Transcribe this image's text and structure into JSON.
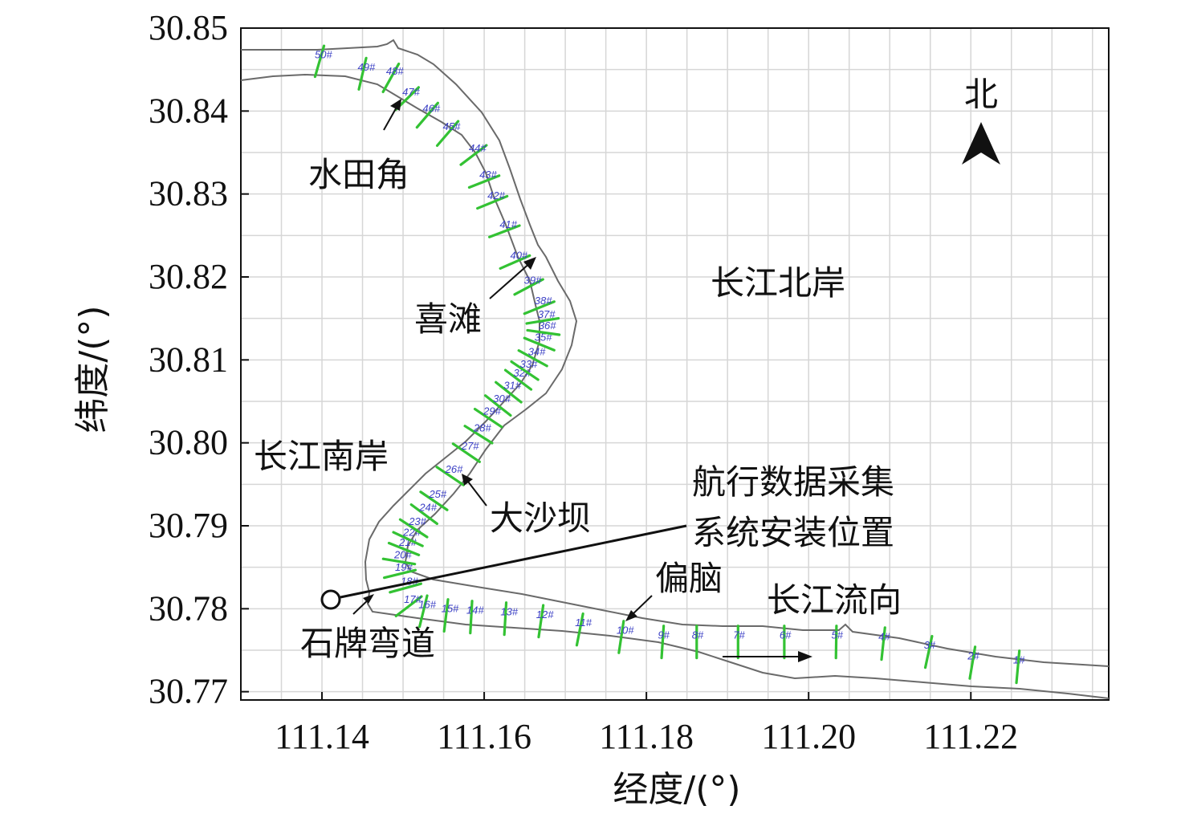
{
  "axes": {
    "xlabel": "经度/(°)",
    "ylabel": "纬度/(°)",
    "xlim": [
      111.13,
      111.237
    ],
    "ylim": [
      30.769,
      30.85
    ],
    "xticks": [
      "111.14",
      "111.16",
      "111.18",
      "111.20",
      "111.22"
    ],
    "yticks": [
      "30.85",
      "30.84",
      "30.83",
      "30.82",
      "30.81",
      "30.80",
      "30.79",
      "30.78",
      "30.77"
    ],
    "grid": true
  },
  "north": {
    "label": "北",
    "icon": "north-arrow-icon"
  },
  "places": {
    "shuitianjiao": "水田角",
    "xitan": "喜滩",
    "north_bank": "长江北岸",
    "south_bank": "长江南岸",
    "dashaba": "大沙坝",
    "install_line1": "航行数据采集",
    "install_line2": "系统安装位置",
    "piannao": "偏脑",
    "flow": "长江流向",
    "shipai": "石牌弯道"
  },
  "colors": {
    "bank": "#6a6a6a",
    "section": "#33c233",
    "section_label": "#3a3fc4",
    "grid": "#d6d6d6"
  },
  "sections": [
    {
      "label": "1#",
      "x": 111.2258,
      "y": 30.773
    },
    {
      "label": "2#",
      "x": 111.2202,
      "y": 30.7735
    },
    {
      "label": "3#",
      "x": 111.2148,
      "y": 30.7748
    },
    {
      "label": "4#",
      "x": 111.2092,
      "y": 30.7758
    },
    {
      "label": "5#",
      "x": 111.2034,
      "y": 30.776
    },
    {
      "label": "6#",
      "x": 111.197,
      "y": 30.776
    },
    {
      "label": "7#",
      "x": 111.1913,
      "y": 30.776
    },
    {
      "label": "8#",
      "x": 111.1862,
      "y": 30.776
    },
    {
      "label": "9#",
      "x": 111.182,
      "y": 30.776
    },
    {
      "label": "10#",
      "x": 111.1769,
      "y": 30.7766
    },
    {
      "label": "11#",
      "x": 111.1718,
      "y": 30.7775
    },
    {
      "label": "12#",
      "x": 111.167,
      "y": 30.7785
    },
    {
      "label": "13#",
      "x": 111.1626,
      "y": 30.7788
    },
    {
      "label": "14#",
      "x": 111.1584,
      "y": 30.779
    },
    {
      "label": "15#",
      "x": 111.1553,
      "y": 30.7792
    },
    {
      "label": "16#",
      "x": 111.1525,
      "y": 30.7797
    },
    {
      "label": "17#",
      "x": 111.1507,
      "y": 30.7803
    },
    {
      "label": "18#",
      "x": 111.1503,
      "y": 30.7825
    },
    {
      "label": "19#",
      "x": 111.1496,
      "y": 30.7842
    },
    {
      "label": "20#",
      "x": 111.1495,
      "y": 30.7857
    },
    {
      "label": "21#",
      "x": 111.1501,
      "y": 30.7872
    },
    {
      "label": "22#",
      "x": 111.1506,
      "y": 30.7884
    },
    {
      "label": "23#",
      "x": 111.1513,
      "y": 30.7897
    },
    {
      "label": "24#",
      "x": 111.1526,
      "y": 30.7914
    },
    {
      "label": "25#",
      "x": 111.1538,
      "y": 30.793
    },
    {
      "label": "26#",
      "x": 111.1558,
      "y": 30.796
    },
    {
      "label": "27#",
      "x": 111.1578,
      "y": 30.7988
    },
    {
      "label": "28#",
      "x": 111.1593,
      "y": 30.801
    },
    {
      "label": "29#",
      "x": 111.1605,
      "y": 30.803
    },
    {
      "label": "30#",
      "x": 111.1617,
      "y": 30.8045
    },
    {
      "label": "31#",
      "x": 111.163,
      "y": 30.8061
    },
    {
      "label": "32#",
      "x": 111.1642,
      "y": 30.8076
    },
    {
      "label": "33#",
      "x": 111.165,
      "y": 30.8087
    },
    {
      "label": "34#",
      "x": 111.166,
      "y": 30.8102
    },
    {
      "label": "35#",
      "x": 111.1668,
      "y": 30.8119
    },
    {
      "label": "36#",
      "x": 111.1673,
      "y": 30.8133
    },
    {
      "label": "37#",
      "x": 111.1672,
      "y": 30.8147
    },
    {
      "label": "38#",
      "x": 111.1668,
      "y": 30.8163
    },
    {
      "label": "39#",
      "x": 111.1655,
      "y": 30.8188
    },
    {
      "label": "40#",
      "x": 111.1638,
      "y": 30.8218
    },
    {
      "label": "41#",
      "x": 111.1625,
      "y": 30.8255
    },
    {
      "label": "42#",
      "x": 111.161,
      "y": 30.829
    },
    {
      "label": "43#",
      "x": 111.16,
      "y": 30.8315
    },
    {
      "label": "44#",
      "x": 111.1587,
      "y": 30.8347
    },
    {
      "label": "45#",
      "x": 111.1555,
      "y": 30.8373
    },
    {
      "label": "46#",
      "x": 111.153,
      "y": 30.8395
    },
    {
      "label": "47#",
      "x": 111.1505,
      "y": 30.8415
    },
    {
      "label": "48#",
      "x": 111.1485,
      "y": 30.844
    },
    {
      "label": "49#",
      "x": 111.145,
      "y": 30.8445
    },
    {
      "label": "50#",
      "x": 111.1397,
      "y": 30.846
    }
  ]
}
